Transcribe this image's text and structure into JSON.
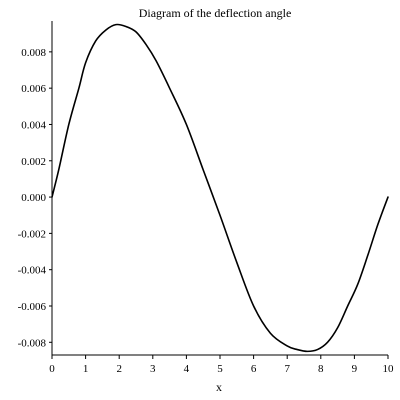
{
  "chart_data": {
    "type": "line",
    "title": "Diagram of the deflection angle",
    "xlabel": "x",
    "ylabel": "",
    "xlim": [
      0,
      10
    ],
    "ylim": [
      -0.0087,
      0.0097
    ],
    "x_ticks": [
      "0",
      "1",
      "2",
      "3",
      "4",
      "5",
      "6",
      "7",
      "8",
      "9",
      "10"
    ],
    "y_ticks": [
      "0.008",
      "0.006",
      "0.004",
      "0.002",
      "0.000",
      "-0.002",
      "-0.004",
      "-0.006",
      "-0.008"
    ],
    "grid": false,
    "series": [
      {
        "x": [
          0,
          0.2,
          0.5,
          0.8,
          1.0,
          1.3,
          1.6,
          1.9,
          2.2,
          2.5,
          2.8,
          3.1,
          3.5,
          4.0,
          4.5,
          5.0,
          5.5,
          6.0,
          6.5,
          7.0,
          7.3,
          7.6,
          7.9,
          8.2,
          8.5,
          8.8,
          9.1,
          9.4,
          9.7,
          10.0
        ],
        "values": [
          0.0,
          0.0015,
          0.004,
          0.006,
          0.0074,
          0.0086,
          0.0092,
          0.0095,
          0.0094,
          0.0091,
          0.0084,
          0.0075,
          0.006,
          0.004,
          0.0015,
          -0.001,
          -0.0036,
          -0.006,
          -0.0075,
          -0.0082,
          -0.0084,
          -0.0085,
          -0.0084,
          -0.008,
          -0.0072,
          -0.006,
          -0.0048,
          -0.0032,
          -0.0015,
          0.0
        ]
      }
    ]
  }
}
